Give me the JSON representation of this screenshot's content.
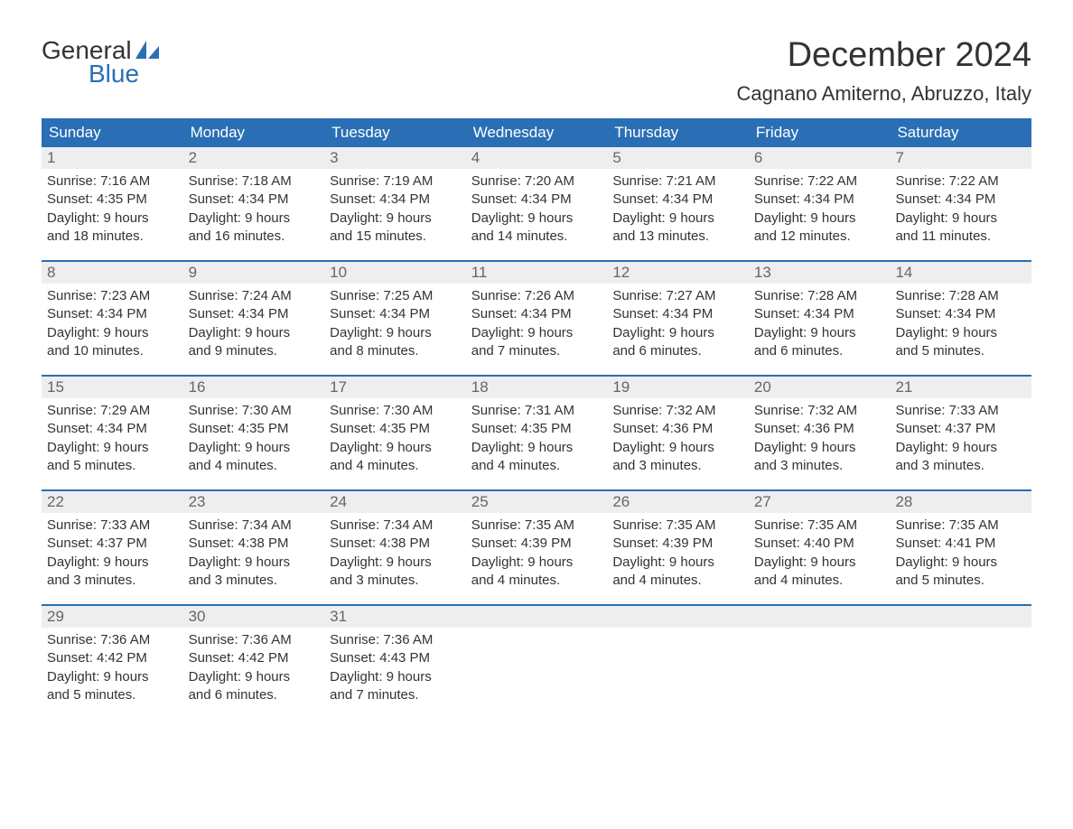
{
  "logo": {
    "text_general": "General",
    "text_blue": "Blue",
    "icon_color": "#2a6fb5",
    "text_general_color": "#333333",
    "text_blue_color": "#2a6fb5"
  },
  "title": {
    "month": "December 2024",
    "location": "Cagnano Amiterno, Abruzzo, Italy",
    "month_fontsize": 38,
    "location_fontsize": 22,
    "color": "#333333"
  },
  "calendar": {
    "header_bg": "#2a6fb5",
    "header_text_color": "#ffffff",
    "daynum_bg": "#eeeeee",
    "daynum_color": "#666666",
    "body_text_color": "#333333",
    "week_divider_color": "#2a6fb5",
    "day_headers": [
      "Sunday",
      "Monday",
      "Tuesday",
      "Wednesday",
      "Thursday",
      "Friday",
      "Saturday"
    ],
    "weeks": [
      [
        {
          "day": "1",
          "sunrise": "Sunrise: 7:16 AM",
          "sunset": "Sunset: 4:35 PM",
          "daylight1": "Daylight: 9 hours",
          "daylight2": "and 18 minutes."
        },
        {
          "day": "2",
          "sunrise": "Sunrise: 7:18 AM",
          "sunset": "Sunset: 4:34 PM",
          "daylight1": "Daylight: 9 hours",
          "daylight2": "and 16 minutes."
        },
        {
          "day": "3",
          "sunrise": "Sunrise: 7:19 AM",
          "sunset": "Sunset: 4:34 PM",
          "daylight1": "Daylight: 9 hours",
          "daylight2": "and 15 minutes."
        },
        {
          "day": "4",
          "sunrise": "Sunrise: 7:20 AM",
          "sunset": "Sunset: 4:34 PM",
          "daylight1": "Daylight: 9 hours",
          "daylight2": "and 14 minutes."
        },
        {
          "day": "5",
          "sunrise": "Sunrise: 7:21 AM",
          "sunset": "Sunset: 4:34 PM",
          "daylight1": "Daylight: 9 hours",
          "daylight2": "and 13 minutes."
        },
        {
          "day": "6",
          "sunrise": "Sunrise: 7:22 AM",
          "sunset": "Sunset: 4:34 PM",
          "daylight1": "Daylight: 9 hours",
          "daylight2": "and 12 minutes."
        },
        {
          "day": "7",
          "sunrise": "Sunrise: 7:22 AM",
          "sunset": "Sunset: 4:34 PM",
          "daylight1": "Daylight: 9 hours",
          "daylight2": "and 11 minutes."
        }
      ],
      [
        {
          "day": "8",
          "sunrise": "Sunrise: 7:23 AM",
          "sunset": "Sunset: 4:34 PM",
          "daylight1": "Daylight: 9 hours",
          "daylight2": "and 10 minutes."
        },
        {
          "day": "9",
          "sunrise": "Sunrise: 7:24 AM",
          "sunset": "Sunset: 4:34 PM",
          "daylight1": "Daylight: 9 hours",
          "daylight2": "and 9 minutes."
        },
        {
          "day": "10",
          "sunrise": "Sunrise: 7:25 AM",
          "sunset": "Sunset: 4:34 PM",
          "daylight1": "Daylight: 9 hours",
          "daylight2": "and 8 minutes."
        },
        {
          "day": "11",
          "sunrise": "Sunrise: 7:26 AM",
          "sunset": "Sunset: 4:34 PM",
          "daylight1": "Daylight: 9 hours",
          "daylight2": "and 7 minutes."
        },
        {
          "day": "12",
          "sunrise": "Sunrise: 7:27 AM",
          "sunset": "Sunset: 4:34 PM",
          "daylight1": "Daylight: 9 hours",
          "daylight2": "and 6 minutes."
        },
        {
          "day": "13",
          "sunrise": "Sunrise: 7:28 AM",
          "sunset": "Sunset: 4:34 PM",
          "daylight1": "Daylight: 9 hours",
          "daylight2": "and 6 minutes."
        },
        {
          "day": "14",
          "sunrise": "Sunrise: 7:28 AM",
          "sunset": "Sunset: 4:34 PM",
          "daylight1": "Daylight: 9 hours",
          "daylight2": "and 5 minutes."
        }
      ],
      [
        {
          "day": "15",
          "sunrise": "Sunrise: 7:29 AM",
          "sunset": "Sunset: 4:34 PM",
          "daylight1": "Daylight: 9 hours",
          "daylight2": "and 5 minutes."
        },
        {
          "day": "16",
          "sunrise": "Sunrise: 7:30 AM",
          "sunset": "Sunset: 4:35 PM",
          "daylight1": "Daylight: 9 hours",
          "daylight2": "and 4 minutes."
        },
        {
          "day": "17",
          "sunrise": "Sunrise: 7:30 AM",
          "sunset": "Sunset: 4:35 PM",
          "daylight1": "Daylight: 9 hours",
          "daylight2": "and 4 minutes."
        },
        {
          "day": "18",
          "sunrise": "Sunrise: 7:31 AM",
          "sunset": "Sunset: 4:35 PM",
          "daylight1": "Daylight: 9 hours",
          "daylight2": "and 4 minutes."
        },
        {
          "day": "19",
          "sunrise": "Sunrise: 7:32 AM",
          "sunset": "Sunset: 4:36 PM",
          "daylight1": "Daylight: 9 hours",
          "daylight2": "and 3 minutes."
        },
        {
          "day": "20",
          "sunrise": "Sunrise: 7:32 AM",
          "sunset": "Sunset: 4:36 PM",
          "daylight1": "Daylight: 9 hours",
          "daylight2": "and 3 minutes."
        },
        {
          "day": "21",
          "sunrise": "Sunrise: 7:33 AM",
          "sunset": "Sunset: 4:37 PM",
          "daylight1": "Daylight: 9 hours",
          "daylight2": "and 3 minutes."
        }
      ],
      [
        {
          "day": "22",
          "sunrise": "Sunrise: 7:33 AM",
          "sunset": "Sunset: 4:37 PM",
          "daylight1": "Daylight: 9 hours",
          "daylight2": "and 3 minutes."
        },
        {
          "day": "23",
          "sunrise": "Sunrise: 7:34 AM",
          "sunset": "Sunset: 4:38 PM",
          "daylight1": "Daylight: 9 hours",
          "daylight2": "and 3 minutes."
        },
        {
          "day": "24",
          "sunrise": "Sunrise: 7:34 AM",
          "sunset": "Sunset: 4:38 PM",
          "daylight1": "Daylight: 9 hours",
          "daylight2": "and 3 minutes."
        },
        {
          "day": "25",
          "sunrise": "Sunrise: 7:35 AM",
          "sunset": "Sunset: 4:39 PM",
          "daylight1": "Daylight: 9 hours",
          "daylight2": "and 4 minutes."
        },
        {
          "day": "26",
          "sunrise": "Sunrise: 7:35 AM",
          "sunset": "Sunset: 4:39 PM",
          "daylight1": "Daylight: 9 hours",
          "daylight2": "and 4 minutes."
        },
        {
          "day": "27",
          "sunrise": "Sunrise: 7:35 AM",
          "sunset": "Sunset: 4:40 PM",
          "daylight1": "Daylight: 9 hours",
          "daylight2": "and 4 minutes."
        },
        {
          "day": "28",
          "sunrise": "Sunrise: 7:35 AM",
          "sunset": "Sunset: 4:41 PM",
          "daylight1": "Daylight: 9 hours",
          "daylight2": "and 5 minutes."
        }
      ],
      [
        {
          "day": "29",
          "sunrise": "Sunrise: 7:36 AM",
          "sunset": "Sunset: 4:42 PM",
          "daylight1": "Daylight: 9 hours",
          "daylight2": "and 5 minutes."
        },
        {
          "day": "30",
          "sunrise": "Sunrise: 7:36 AM",
          "sunset": "Sunset: 4:42 PM",
          "daylight1": "Daylight: 9 hours",
          "daylight2": "and 6 minutes."
        },
        {
          "day": "31",
          "sunrise": "Sunrise: 7:36 AM",
          "sunset": "Sunset: 4:43 PM",
          "daylight1": "Daylight: 9 hours",
          "daylight2": "and 7 minutes."
        },
        null,
        null,
        null,
        null
      ]
    ]
  }
}
